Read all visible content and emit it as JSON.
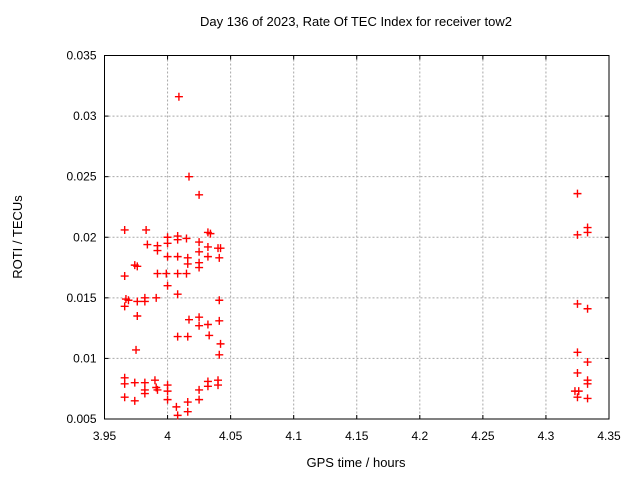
{
  "chart_data": {
    "type": "scatter",
    "title": "Day 136 of 2023, Rate Of TEC Index for receiver tow2",
    "xlabel": "GPS time / hours",
    "ylabel": "ROTI / TECUs",
    "xlim": [
      3.95,
      4.35
    ],
    "ylim": [
      0.005,
      0.035
    ],
    "xticks": [
      3.95,
      4.0,
      4.05,
      4.1,
      4.15,
      4.2,
      4.25,
      4.3,
      4.35
    ],
    "xtick_labels": [
      "3.95",
      "4",
      "4.05",
      "4.1",
      "4.15",
      "4.2",
      "4.25",
      "4.3",
      "4.35"
    ],
    "yticks": [
      0.005,
      0.01,
      0.015,
      0.02,
      0.025,
      0.03,
      0.035
    ],
    "ytick_labels": [
      "0.005",
      "0.01",
      "0.015",
      "0.02",
      "0.025",
      "0.03",
      "0.035"
    ],
    "grid": true,
    "legend": null,
    "style": {
      "marker_symbol": "plus",
      "marker_color": "#ff0000",
      "grid_color": "#a8a8a8",
      "border_color": "#000000",
      "background": "#ffffff",
      "text_color": "#000000"
    },
    "series": [
      {
        "name": "ROTI",
        "points": [
          [
            4.009,
            0.0316
          ],
          [
            4.017,
            0.025
          ],
          [
            4.025,
            0.0235
          ],
          [
            3.966,
            0.0206
          ],
          [
            3.983,
            0.0206
          ],
          [
            4.0,
            0.02
          ],
          [
            4.008,
            0.0201
          ],
          [
            4.008,
            0.0198
          ],
          [
            4.015,
            0.0199
          ],
          [
            4.032,
            0.0204
          ],
          [
            4.034,
            0.0203
          ],
          [
            3.984,
            0.0194
          ],
          [
            3.992,
            0.0193
          ],
          [
            4.0,
            0.0195
          ],
          [
            4.025,
            0.0196
          ],
          [
            4.032,
            0.0192
          ],
          [
            4.04,
            0.0191
          ],
          [
            4.042,
            0.0191
          ],
          [
            3.992,
            0.0189
          ],
          [
            4.025,
            0.0188
          ],
          [
            4.0,
            0.0184
          ],
          [
            4.008,
            0.0184
          ],
          [
            4.016,
            0.0183
          ],
          [
            4.032,
            0.0184
          ],
          [
            4.041,
            0.0183
          ],
          [
            3.974,
            0.0177
          ],
          [
            3.976,
            0.0176
          ],
          [
            4.025,
            0.0179
          ],
          [
            4.016,
            0.0178
          ],
          [
            4.025,
            0.0175
          ],
          [
            3.992,
            0.017
          ],
          [
            3.999,
            0.017
          ],
          [
            4.008,
            0.017
          ],
          [
            4.015,
            0.017
          ],
          [
            3.966,
            0.0168
          ],
          [
            4.0,
            0.016
          ],
          [
            4.008,
            0.0153
          ],
          [
            3.982,
            0.015
          ],
          [
            3.991,
            0.015
          ],
          [
            3.967,
            0.0149
          ],
          [
            3.969,
            0.0148
          ],
          [
            3.982,
            0.0147
          ],
          [
            3.976,
            0.0147
          ],
          [
            4.041,
            0.0148
          ],
          [
            3.966,
            0.0143
          ],
          [
            3.976,
            0.0135
          ],
          [
            4.025,
            0.0134
          ],
          [
            4.017,
            0.0132
          ],
          [
            4.041,
            0.0131
          ],
          [
            4.032,
            0.0128
          ],
          [
            4.025,
            0.0127
          ],
          [
            4.008,
            0.0118
          ],
          [
            4.016,
            0.0118
          ],
          [
            4.033,
            0.0119
          ],
          [
            4.042,
            0.0112
          ],
          [
            3.975,
            0.0107
          ],
          [
            4.041,
            0.0103
          ],
          [
            3.966,
            0.0084
          ],
          [
            3.99,
            0.0082
          ],
          [
            3.974,
            0.008
          ],
          [
            3.982,
            0.008
          ],
          [
            3.966,
            0.0079
          ],
          [
            4.04,
            0.0082
          ],
          [
            4.032,
            0.0081
          ],
          [
            4.0,
            0.0078
          ],
          [
            4.04,
            0.0078
          ],
          [
            4.032,
            0.0077
          ],
          [
            3.991,
            0.0076
          ],
          [
            3.982,
            0.0074
          ],
          [
            3.992,
            0.0074
          ],
          [
            4.025,
            0.0074
          ],
          [
            4.0,
            0.0073
          ],
          [
            3.982,
            0.0071
          ],
          [
            3.966,
            0.0068
          ],
          [
            4.0,
            0.0066
          ],
          [
            4.025,
            0.0066
          ],
          [
            3.974,
            0.0065
          ],
          [
            4.016,
            0.0064
          ],
          [
            4.007,
            0.006
          ],
          [
            4.016,
            0.0056
          ],
          [
            4.008,
            0.0053
          ],
          [
            4.325,
            0.0236
          ],
          [
            4.333,
            0.0208
          ],
          [
            4.333,
            0.0204
          ],
          [
            4.325,
            0.0202
          ],
          [
            4.325,
            0.0145
          ],
          [
            4.333,
            0.0141
          ],
          [
            4.325,
            0.0105
          ],
          [
            4.333,
            0.0097
          ],
          [
            4.325,
            0.0088
          ],
          [
            4.333,
            0.0082
          ],
          [
            4.333,
            0.0079
          ],
          [
            4.323,
            0.0073
          ],
          [
            4.326,
            0.0073
          ],
          [
            4.325,
            0.0068
          ],
          [
            4.333,
            0.0067
          ]
        ]
      }
    ]
  }
}
